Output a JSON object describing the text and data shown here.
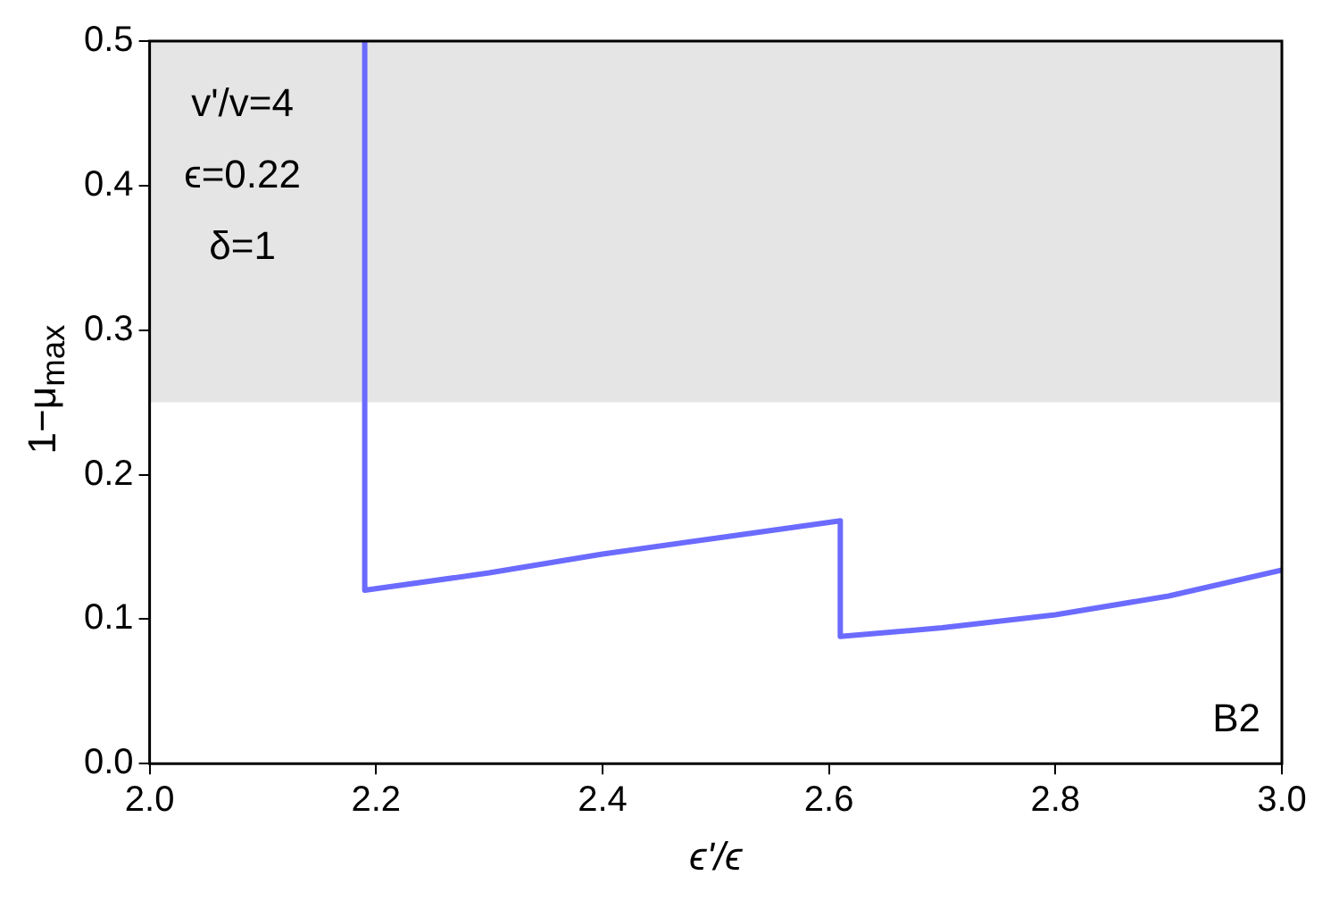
{
  "chart_data": {
    "type": "line",
    "xlabel": "ϵ'/ϵ",
    "ylabel": "1−μ$_{max}$",
    "series": [
      {
        "color": "#6b6bff",
        "x": [
          2.19,
          2.19,
          2.3,
          2.4,
          2.5,
          2.61,
          2.61,
          2.7,
          2.8,
          2.9,
          3.0
        ],
        "values": [
          0.5,
          0.12,
          0.132,
          0.145,
          0.156,
          0.168,
          0.088,
          0.094,
          0.103,
          0.116,
          0.134
        ]
      }
    ],
    "xlim": [
      2.0,
      3.0
    ],
    "xticks": [
      {
        "value": 2.0,
        "label": "2.0"
      },
      2.2,
      2.4,
      2.6,
      2.8,
      {
        "value": 3.0,
        "label": "3.0"
      }
    ],
    "ylim": [
      0,
      0.5
    ],
    "yticks": [
      {
        "value": 0,
        "label": "0.0"
      },
      0.1,
      0.2,
      0.3,
      0.4,
      0.5
    ],
    "bands": [
      {
        "axis": "y",
        "from": 0.25,
        "to": 0.5,
        "color": "#e5e5e5"
      }
    ],
    "annotations": [
      "v'/v=4",
      "ϵ=0.22",
      "δ=1",
      "B2"
    ],
    "grid": false,
    "legend": false,
    "marker": "none",
    "line_style": "solid"
  }
}
